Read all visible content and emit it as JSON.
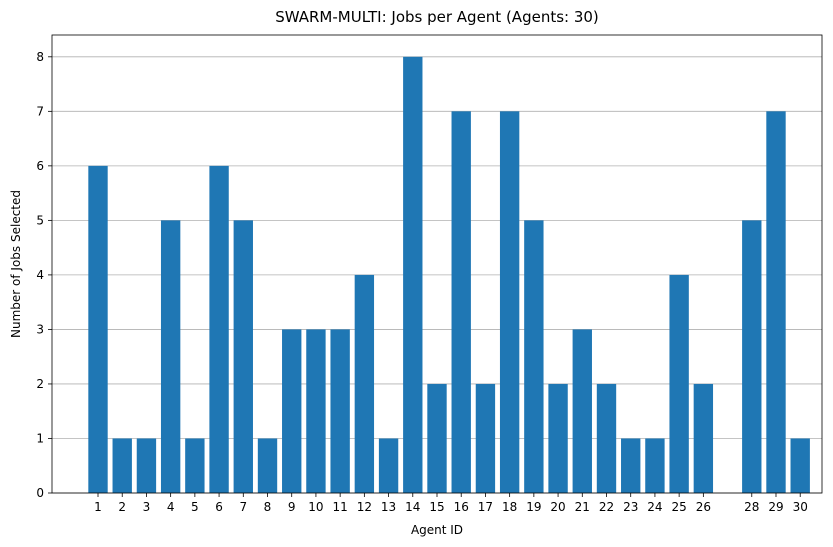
{
  "chart_data": {
    "type": "bar",
    "title": "SWARM-MULTI: Jobs per Agent (Agents: 30)",
    "xlabel": "Agent ID",
    "ylabel": "Number of Jobs Selected",
    "categories": [
      1,
      2,
      3,
      4,
      5,
      6,
      7,
      8,
      9,
      10,
      11,
      12,
      13,
      14,
      15,
      16,
      17,
      18,
      19,
      20,
      21,
      22,
      23,
      24,
      25,
      26,
      28,
      29,
      30
    ],
    "values": [
      6,
      1,
      1,
      5,
      1,
      6,
      5,
      1,
      3,
      3,
      3,
      4,
      1,
      8,
      2,
      7,
      2,
      7,
      5,
      2,
      3,
      2,
      1,
      1,
      4,
      2,
      5,
      7,
      1
    ],
    "xlim": [
      -0.9,
      30.9
    ],
    "ylim": [
      0,
      8.4
    ],
    "yticks": [
      0,
      1,
      2,
      3,
      4,
      5,
      6,
      7,
      8
    ],
    "grid": "y-axis",
    "bar_color": "#1f77b4"
  }
}
